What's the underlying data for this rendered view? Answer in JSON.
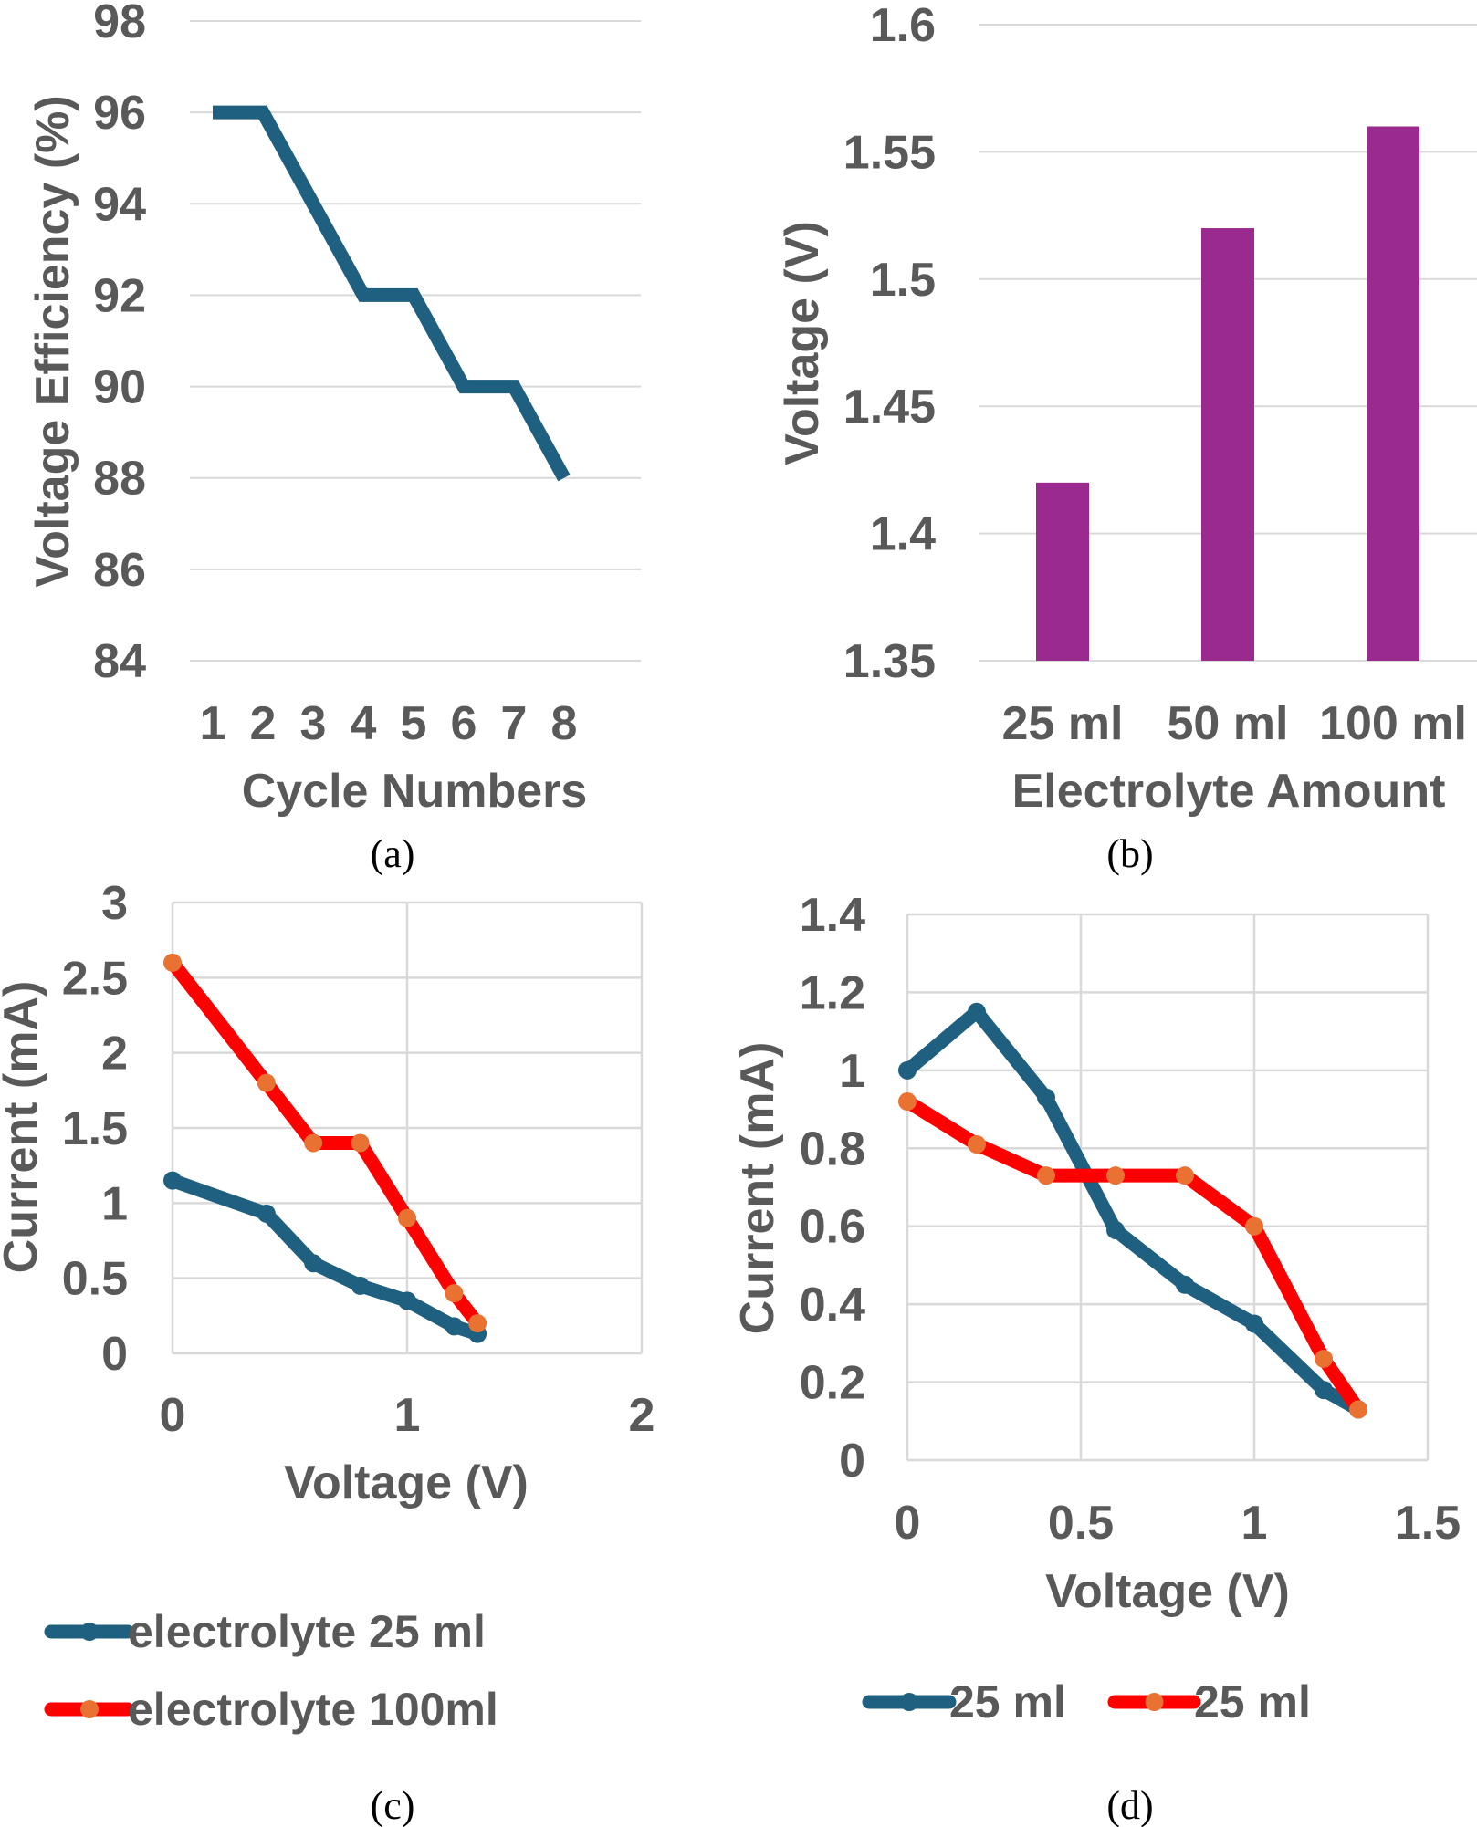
{
  "chart_data": [
    {
      "type": "line",
      "caption": "(a)",
      "xlabel": "Cycle Numbers",
      "ylabel": "Voltage Efficiency (%)",
      "categories": [
        "1",
        "2",
        "3",
        "4",
        "5",
        "6",
        "7",
        "8"
      ],
      "series": [
        {
          "values": [
            96,
            96,
            94,
            92,
            92,
            90,
            90,
            88
          ],
          "color": "#1F5F7F"
        }
      ],
      "ylim": [
        84,
        98
      ],
      "yticks": [
        84,
        86,
        88,
        90,
        92,
        94,
        96,
        98
      ],
      "grid": "horizontal"
    },
    {
      "type": "bar",
      "caption": "(b)",
      "xlabel": "Electrolyte Amount",
      "ylabel": "Voltage (V)",
      "categories": [
        "25 ml",
        "50 ml",
        "100 ml"
      ],
      "values": [
        1.42,
        1.52,
        1.56
      ],
      "color": "#9B2A8E",
      "ylim": [
        1.35,
        1.6
      ],
      "yticks": [
        "1.35",
        "1.4",
        "1.45",
        "1.5",
        "1.55",
        "1.6"
      ],
      "grid": "horizontal"
    },
    {
      "type": "scatter-line",
      "caption": "(c)",
      "xlabel": "Voltage (V)",
      "ylabel": "Current (mA)",
      "xlim": [
        0,
        2
      ],
      "ylim": [
        0,
        3
      ],
      "xticks": [
        "0",
        "1",
        "2"
      ],
      "yticks": [
        "0",
        "0.5",
        "1",
        "1.5",
        "2",
        "2.5",
        "3"
      ],
      "grid": "both",
      "legend": "bottom",
      "series": [
        {
          "name": "electrolyte 25 ml",
          "color": "#1F5F7F",
          "marker": "#1F5F7F",
          "x": [
            0,
            0.4,
            0.6,
            0.8,
            1.0,
            1.2,
            1.3
          ],
          "y": [
            1.15,
            0.93,
            0.6,
            0.45,
            0.35,
            0.18,
            0.13
          ]
        },
        {
          "name": "electrolyte 100ml",
          "color": "#FF0000",
          "marker": "#E97132",
          "x": [
            0,
            0.4,
            0.6,
            0.8,
            1.0,
            1.2,
            1.3
          ],
          "y": [
            2.6,
            1.8,
            1.4,
            1.4,
            0.9,
            0.4,
            0.2
          ]
        }
      ]
    },
    {
      "type": "scatter-line",
      "caption": "(d)",
      "xlabel": "Voltage (V)",
      "ylabel": "Current (mA)",
      "xlim": [
        0,
        1.5
      ],
      "ylim": [
        0,
        1.4
      ],
      "xticks": [
        "0",
        "0.5",
        "1",
        "1.5"
      ],
      "yticks": [
        "0",
        "0.2",
        "0.4",
        "0.6",
        "0.8",
        "1",
        "1.2",
        "1.4"
      ],
      "grid": "both",
      "legend": "bottom",
      "series": [
        {
          "name": "25 ml",
          "color": "#1F5F7F",
          "marker": "#1F5F7F",
          "x": [
            0,
            0.2,
            0.4,
            0.6,
            0.8,
            1.0,
            1.2,
            1.3
          ],
          "y": [
            1.0,
            1.15,
            0.93,
            0.59,
            0.45,
            0.35,
            0.18,
            0.13
          ]
        },
        {
          "name": "25 ml",
          "color": "#FF0000",
          "marker": "#E97132",
          "x": [
            0,
            0.2,
            0.4,
            0.6,
            0.8,
            1.0,
            1.2,
            1.3
          ],
          "y": [
            0.92,
            0.81,
            0.73,
            0.73,
            0.73,
            0.6,
            0.26,
            0.13
          ]
        }
      ]
    }
  ]
}
